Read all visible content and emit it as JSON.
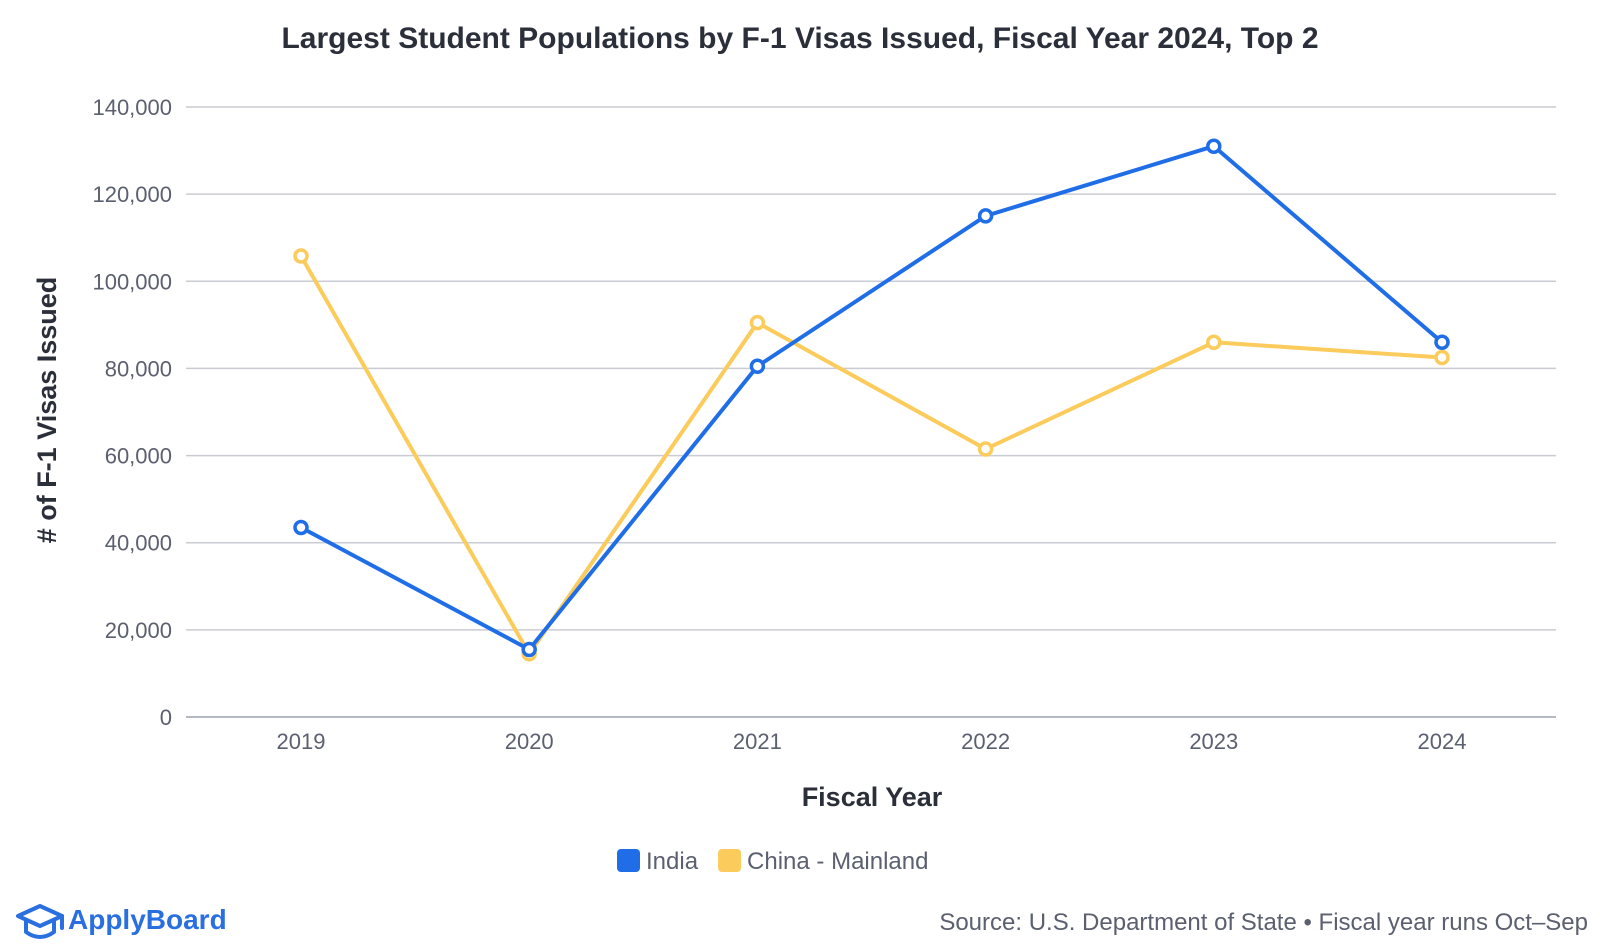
{
  "chart_data": {
    "type": "line",
    "title": "Largest Student Populations by F-1 Visas Issued, Fiscal Year 2024, Top 2",
    "xlabel": "Fiscal Year",
    "ylabel": "# of F-1 Visas Issued",
    "x": [
      "2019",
      "2020",
      "2021",
      "2022",
      "2023",
      "2024"
    ],
    "ylim": [
      0,
      140000
    ],
    "yticks": [
      0,
      20000,
      40000,
      60000,
      80000,
      100000,
      120000,
      140000
    ],
    "ytick_labels": [
      "0",
      "20,000",
      "40,000",
      "60,000",
      "80,000",
      "100,000",
      "120,000",
      "140,000"
    ],
    "grid": true,
    "legend_position": "bottom-center",
    "series": [
      {
        "name": "India",
        "color": "#1f6ee8",
        "values": [
          43500,
          15500,
          80500,
          115000,
          131000,
          86000
        ]
      },
      {
        "name": "China - Mainland",
        "color": "#fbcb5c",
        "values": [
          105800,
          14500,
          90500,
          61500,
          86000,
          82500
        ]
      }
    ]
  },
  "source": "Source: U.S. Department of State • Fiscal year runs Oct–Sep",
  "brand": {
    "name": "ApplyBoard",
    "logo_icon": "graduation-cap-icon",
    "color": "#2a6fe0"
  }
}
